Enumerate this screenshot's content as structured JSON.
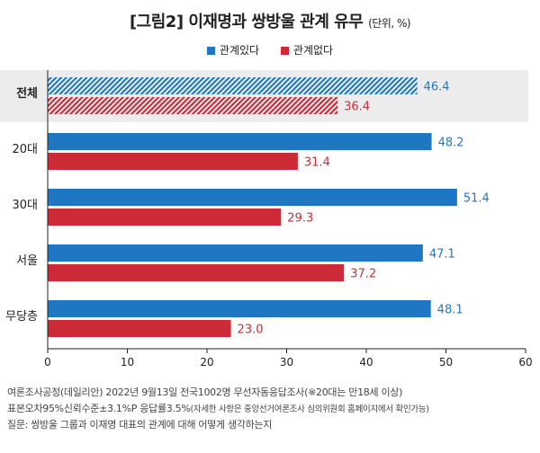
{
  "header": {
    "title": "[그림2] 이재명과 쌍방울 관계 유무",
    "unit": "(단위, %)"
  },
  "colors": {
    "blue": "#1f77c4",
    "red": "#cc2a36",
    "highlight_bg": "#ececec"
  },
  "chart_data": {
    "type": "bar",
    "orientation": "horizontal",
    "categories": [
      "전체",
      "20대",
      "30대",
      "서울",
      "무당층"
    ],
    "series": [
      {
        "name": "관계있다",
        "values": [
          46.4,
          48.2,
          51.4,
          47.1,
          48.1
        ]
      },
      {
        "name": "관계없다",
        "values": [
          36.4,
          31.4,
          29.3,
          37.2,
          23.0
        ]
      }
    ],
    "xticks": [
      0,
      10,
      20,
      30,
      40,
      50,
      60
    ],
    "xlim": [
      0,
      60
    ],
    "legend_position": "top",
    "highlighted_category": "전체"
  },
  "footer": {
    "line1": "여론조사공정(데일리안) 2022년 9월13일 전국1002명 무선자동응답조사(※20대는 만18세 이상)",
    "line2_main": "표본오차95%신뢰수준±3.1%P 응답률3.5%",
    "line2_small": "(자세한 사항은 중앙선거여론조사 심의위원회 홈페이지에서 확인가능)",
    "line3": "질문: 쌍방울 그룹과 이재명 대표의 관계에 대해 어떻게 생각하는지"
  }
}
